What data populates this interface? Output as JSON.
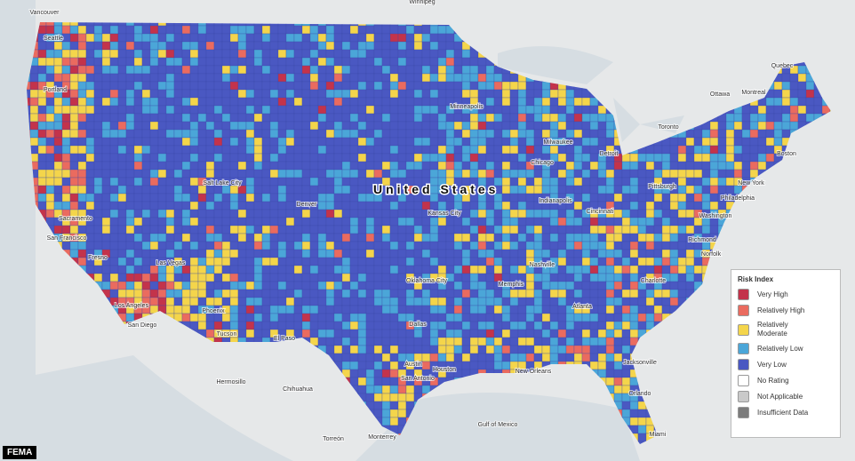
{
  "map": {
    "title": "United States",
    "source": "FEMA",
    "legend": {
      "title": "Risk Index",
      "items": [
        {
          "label": "Very High",
          "color": "#c3334b"
        },
        {
          "label": "Relatively High",
          "color": "#ea6b5f"
        },
        {
          "label": "Relatively Moderate",
          "color": "#f4d54b"
        },
        {
          "label": "Relatively Low",
          "color": "#4ba6d8"
        },
        {
          "label": "Very Low",
          "color": "#4a58c2"
        },
        {
          "label": "No Rating",
          "color": "#ffffff"
        },
        {
          "label": "Not Applicable",
          "color": "#c9c9c9"
        },
        {
          "label": "Insufficient Data",
          "color": "#7b7b7b"
        }
      ]
    },
    "places": [
      "Vancouver",
      "Winnipeg",
      "Seattle",
      "Portland",
      "Sacramento",
      "San Francisco",
      "Fresno",
      "Los Angeles",
      "San Diego",
      "Las Vegas",
      "Phoenix",
      "Tucson",
      "El Paso",
      "Salt Lake City",
      "Denver",
      "Kansas City",
      "Oklahoma City",
      "Dallas",
      "Austin",
      "San Antonio",
      "Houston",
      "New Orleans",
      "Memphis",
      "Nashville",
      "Atlanta",
      "Jacksonville",
      "Orlando",
      "Miami",
      "Chicago",
      "Milwaukee",
      "Detroit",
      "Minneapolis",
      "Toronto",
      "Ottawa",
      "Montreal",
      "Quebec",
      "Boston",
      "New York",
      "Philadelphia",
      "Washington",
      "Richmond",
      "Norfolk",
      "Charlotte",
      "Pittsburgh",
      "Indianapolis",
      "Cincinnati",
      "Hermosillo",
      "Chihuahua",
      "Monterrey",
      "Torreón",
      "Gulf of Mexico"
    ]
  }
}
